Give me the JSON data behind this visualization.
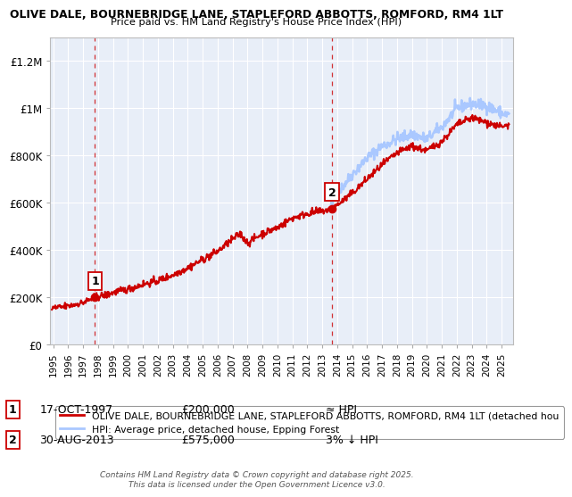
{
  "title1": "OLIVE DALE, BOURNEBRIDGE LANE, STAPLEFORD ABBOTTS, ROMFORD, RM4 1LT",
  "title2": "Price paid vs. HM Land Registry's House Price Index (HPI)",
  "ylabel_ticks": [
    "£0",
    "£200K",
    "£400K",
    "£600K",
    "£800K",
    "£1M",
    "£1.2M"
  ],
  "ytick_values": [
    0,
    200000,
    400000,
    600000,
    800000,
    1000000,
    1200000
  ],
  "ylim": [
    0,
    1300000
  ],
  "xlim_start": 1994.8,
  "xlim_end": 2025.8,
  "sale1_x": 1997.79,
  "sale1_y": 200000,
  "sale1_label": "1",
  "sale2_x": 2013.66,
  "sale2_y": 575000,
  "sale2_label": "2",
  "property_color": "#cc0000",
  "hpi_color": "#aac8ff",
  "plot_bg_color": "#e8eef8",
  "legend_property": "OLIVE DALE, BOURNEBRIDGE LANE, STAPLEFORD ABBOTTS, ROMFORD, RM4 1LT (detached hou",
  "legend_hpi": "HPI: Average price, detached house, Epping Forest",
  "annotation1_date": "17-OCT-1997",
  "annotation1_price": "£200,000",
  "annotation1_hpi": "≈ HPI",
  "annotation2_date": "30-AUG-2013",
  "annotation2_price": "£575,000",
  "annotation2_hpi": "3% ↓ HPI",
  "footer": "Contains HM Land Registry data © Crown copyright and database right 2025.\nThis data is licensed under the Open Government Licence v3.0.",
  "grid_color": "#ffffff",
  "bg_color": "#ffffff",
  "dashed_line_color": "#cc0000"
}
